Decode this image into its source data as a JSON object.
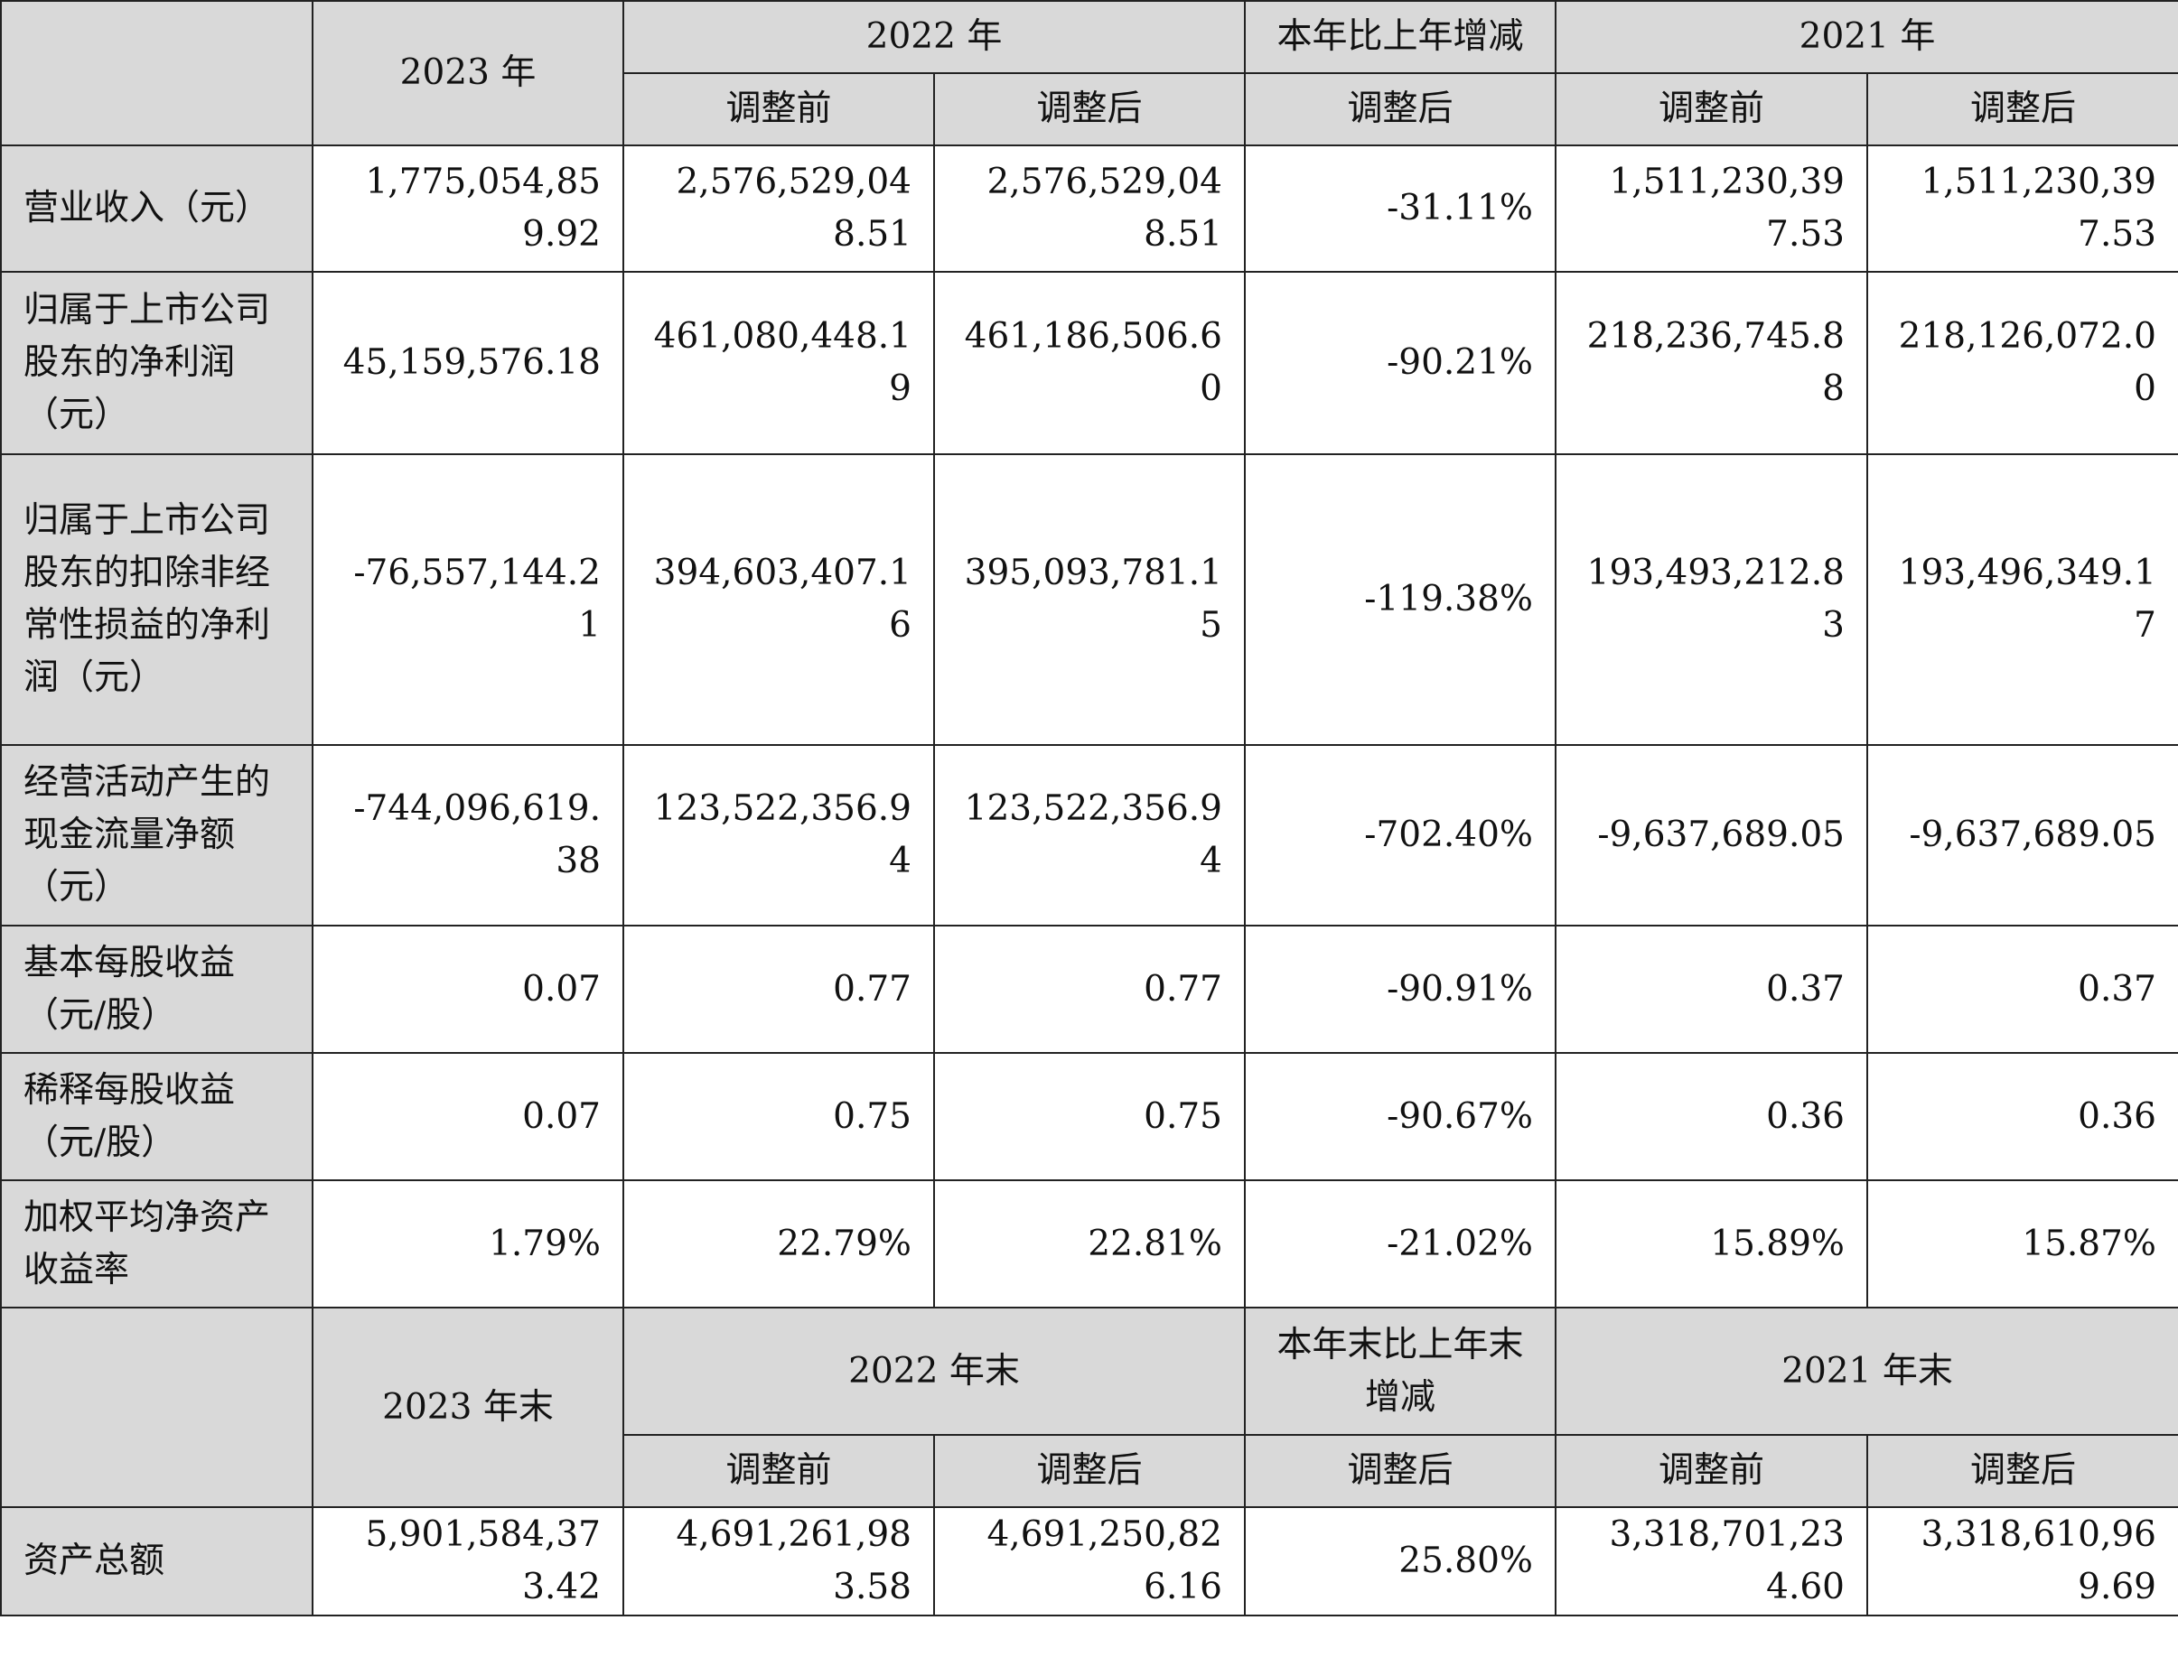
{
  "header_top": {
    "y2023": "2023 年",
    "y2022": "2022 年",
    "change": "本年比上年增减",
    "y2021": "2021 年",
    "before": "调整前",
    "after": "调整后"
  },
  "rows": [
    {
      "label": "营业收入（元）",
      "v2023": "1,775,054,859.92",
      "v2022_before": "2,576,529,048.51",
      "v2022_after": "2,576,529,048.51",
      "change": "-31.11%",
      "v2021_before": "1,511,230,397.53",
      "v2021_after": "1,511,230,397.53"
    },
    {
      "label": "归属于上市公司股东的净利润（元）",
      "v2023": "45,159,576.18",
      "v2022_before": "461,080,448.19",
      "v2022_after": "461,186,506.60",
      "change": "-90.21%",
      "v2021_before": "218,236,745.88",
      "v2021_after": "218,126,072.00"
    },
    {
      "label": "归属于上市公司股东的扣除非经常性损益的净利润（元）",
      "v2023": "-76,557,144.21",
      "v2022_before": "394,603,407.16",
      "v2022_after": "395,093,781.15",
      "change": "-119.38%",
      "v2021_before": "193,493,212.83",
      "v2021_after": "193,496,349.17"
    },
    {
      "label": "经营活动产生的现金流量净额（元）",
      "v2023": "-744,096,619.38",
      "v2022_before": "123,522,356.94",
      "v2022_after": "123,522,356.94",
      "change": "-702.40%",
      "v2021_before": "-9,637,689.05",
      "v2021_after": "-9,637,689.05"
    },
    {
      "label": "基本每股收益（元/股）",
      "v2023": "0.07",
      "v2022_before": "0.77",
      "v2022_after": "0.77",
      "change": "-90.91%",
      "v2021_before": "0.37",
      "v2021_after": "0.37"
    },
    {
      "label": "稀释每股收益（元/股）",
      "v2023": "0.07",
      "v2022_before": "0.75",
      "v2022_after": "0.75",
      "change": "-90.67%",
      "v2021_before": "0.36",
      "v2021_after": "0.36"
    },
    {
      "label": "加权平均净资产收益率",
      "v2023": "1.79%",
      "v2022_before": "22.79%",
      "v2022_after": "22.81%",
      "change": "-21.02%",
      "v2021_before": "15.89%",
      "v2021_after": "15.87%"
    }
  ],
  "header_bottom": {
    "y2023": "2023 年末",
    "y2022": "2022 年末",
    "change": "本年末比上年末增减",
    "y2021": "2021 年末",
    "before": "调整前",
    "after": "调整后"
  },
  "rows_bottom": [
    {
      "label": "资产总额",
      "v2023": "5,901,584,373.42",
      "v2022_before": "4,691,261,983.58",
      "v2022_after": "4,691,250,826.16",
      "change": "25.80%",
      "v2021_before": "3,318,701,234.60",
      "v2021_after": "3,318,610,969.69"
    }
  ]
}
